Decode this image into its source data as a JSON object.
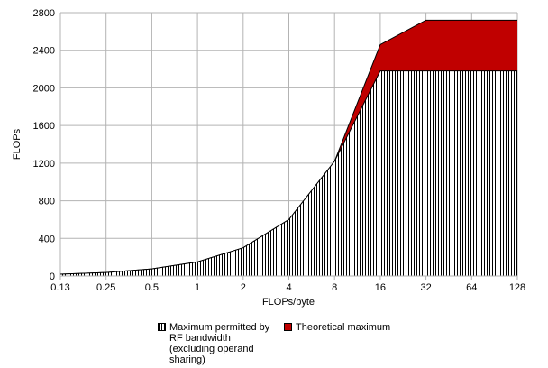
{
  "chart_data": {
    "type": "area",
    "x_label": "FLOPs/byte",
    "y_label": "FLOPs",
    "categories": [
      "0.13",
      "0.25",
      "0.5",
      "1",
      "2",
      "4",
      "8",
      "16",
      "32",
      "64",
      "128"
    ],
    "series": [
      {
        "name": "Maximum permitted by RF bandwidth (excluding operand sharing)",
        "color": "#000000",
        "pattern": "vertical-hatch",
        "values": [
          19,
          37,
          75,
          150,
          300,
          600,
          1220,
          2180,
          2180,
          2180,
          2180
        ]
      },
      {
        "name": "Theoretical maximum",
        "color": "#c00000",
        "values": [
          19,
          37,
          75,
          150,
          300,
          600,
          1220,
          2460,
          2720,
          2720,
          2720
        ]
      }
    ],
    "ylim": [
      0,
      2800
    ],
    "yticks": [
      0,
      400,
      800,
      1200,
      1600,
      2000,
      2400,
      2800
    ],
    "grid": true
  }
}
